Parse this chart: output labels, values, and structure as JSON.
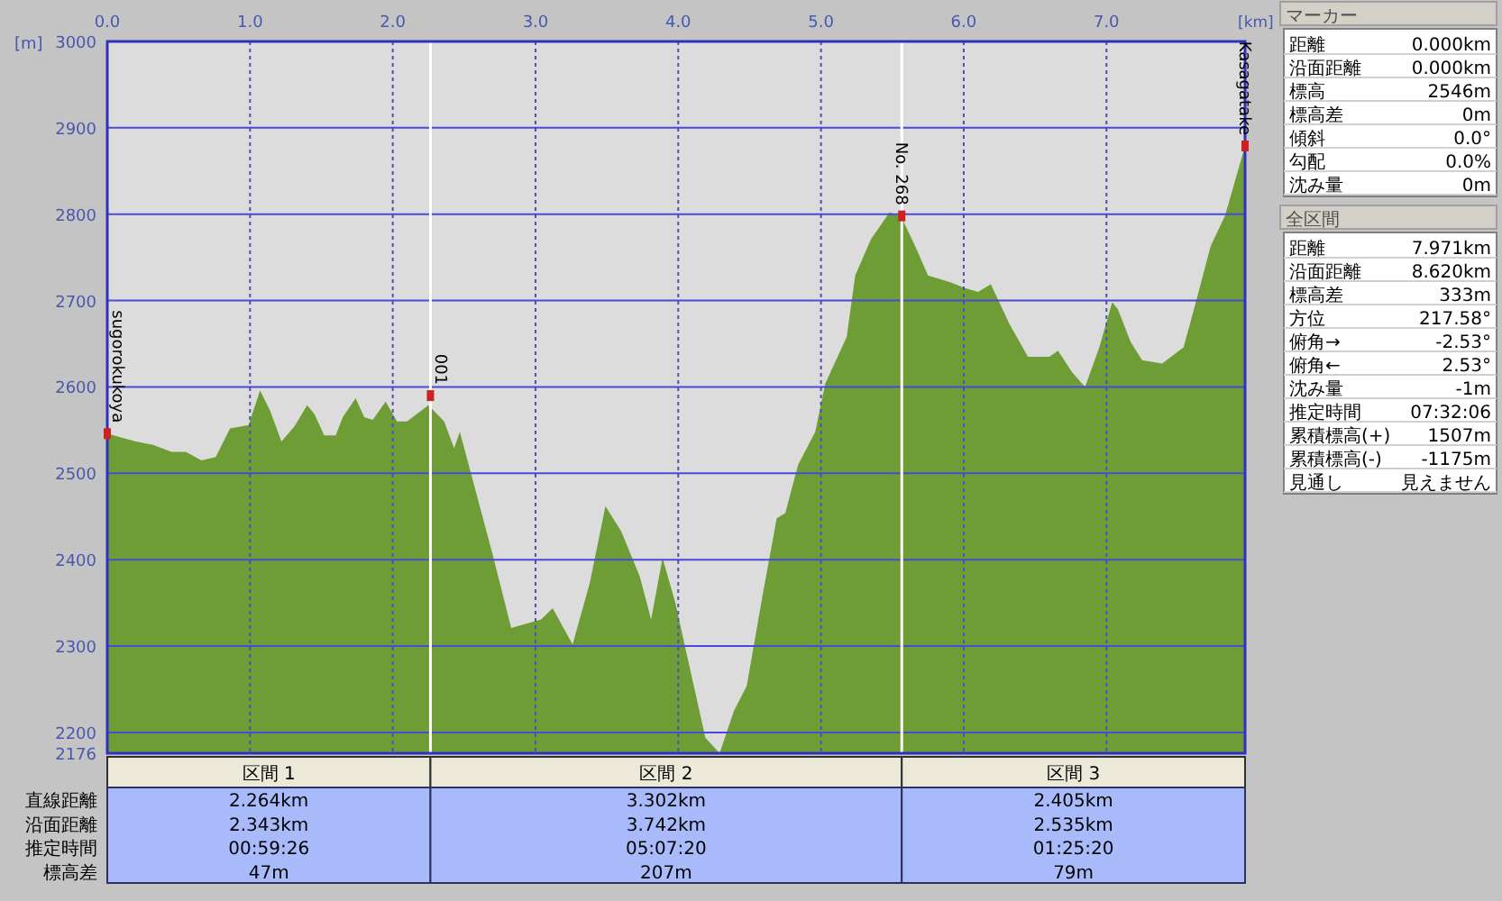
{
  "chart_data": {
    "type": "area",
    "xlabel": "[km]",
    "ylabel": "[m]",
    "x": [
      0,
      0.2,
      0.32,
      0.45,
      0.55,
      0.66,
      0.76,
      0.86,
      0.99,
      1.07,
      1.14,
      1.22,
      1.31,
      1.4,
      1.45,
      1.52,
      1.6,
      1.65,
      1.74,
      1.8,
      1.86,
      1.95,
      2.03,
      2.1,
      2.25,
      2.36,
      2.43,
      2.47,
      2.7,
      2.83,
      3.04,
      3.12,
      3.26,
      3.38,
      3.49,
      3.6,
      3.73,
      3.81,
      3.89,
      3.98,
      4.07,
      4.19,
      4.29,
      4.39,
      4.48,
      4.59,
      4.69,
      4.75,
      4.84,
      4.96,
      5.03,
      5.18,
      5.24,
      5.35,
      5.48,
      5.56,
      5.66,
      5.75,
      5.91,
      6.0,
      6.1,
      6.19,
      6.32,
      6.45,
      6.6,
      6.66,
      6.76,
      6.85,
      6.95,
      7.04,
      7.08,
      7.17,
      7.25,
      7.39,
      7.54,
      7.62,
      7.73,
      7.83,
      7.971
    ],
    "series": [
      {
        "color": "#6f9d35",
        "values": [
          2546,
          2537,
          2533,
          2525,
          2525,
          2515,
          2519,
          2552,
          2556,
          2596,
          2573,
          2537,
          2554,
          2579,
          2569,
          2544,
          2544,
          2565,
          2587,
          2565,
          2562,
          2583,
          2560,
          2560,
          2579,
          2560,
          2529,
          2548,
          2406,
          2321,
          2331,
          2344,
          2302,
          2373,
          2462,
          2433,
          2381,
          2331,
          2402,
          2350,
          2283,
          2194,
          2176,
          2225,
          2254,
          2358,
          2448,
          2454,
          2510,
          2548,
          2604,
          2658,
          2729,
          2771,
          2802,
          2798,
          2763,
          2729,
          2721,
          2715,
          2710,
          2719,
          2673,
          2635,
          2635,
          2642,
          2617,
          2600,
          2646,
          2698,
          2690,
          2652,
          2631,
          2627,
          2646,
          2694,
          2763,
          2798,
          2879
        ]
      }
    ],
    "xlim": [
      0,
      7.971
    ],
    "ylim": [
      2176,
      3000
    ],
    "xticks": [
      {
        "value": 0,
        "label": "0.0"
      },
      {
        "value": 1,
        "label": "1.0"
      },
      {
        "value": 2,
        "label": "2.0"
      },
      {
        "value": 3,
        "label": "3.0"
      },
      {
        "value": 4,
        "label": "4.0"
      },
      {
        "value": 5,
        "label": "5.0"
      },
      {
        "value": 6,
        "label": "6.0"
      },
      {
        "value": 7,
        "label": "7.0"
      }
    ],
    "yticks": [
      2176,
      2200,
      2300,
      2400,
      2500,
      2600,
      2700,
      2800,
      2900,
      3000
    ],
    "grid": true,
    "ref_lines": [
      {
        "axis": "x",
        "value": 2.264,
        "color": "#ffffff"
      },
      {
        "axis": "x",
        "value": 5.566,
        "color": "#ffffff"
      }
    ],
    "annotations": [
      "マーカー",
      "距離",
      "0.000km",
      "沿面距離",
      "0.000km",
      "標高",
      "2546m",
      "標高差",
      "0m",
      "傾斜",
      "0.0°",
      "勾配",
      "0.0%",
      "沈み量",
      "0m",
      "全区間",
      "距離",
      "7.971km",
      "沿面距離",
      "8.620km",
      "標高差",
      "333m",
      "方位",
      "217.58°",
      "俯角→",
      "-2.53°",
      "俯角←",
      "2.53°",
      "沈み量",
      "-1m",
      "推定時間",
      "07:32:06",
      "累積標高(+)",
      "1507m",
      "累積標高(-)",
      "-1175m",
      "見通し",
      "見えません",
      "直線距離",
      "沿面距離",
      "推定時間",
      "標高差",
      "区間 1",
      "区間 2",
      "区間 3",
      "2.264km",
      "2.343km",
      "00:59:26",
      "47m",
      "3.302km",
      "3.742km",
      "05:07:20",
      "207m",
      "2.405km",
      "2.535km",
      "01:25:20",
      "79m",
      {
        "text": "sugorokukoya",
        "x": 0,
        "y": 2546
      },
      {
        "text": "001",
        "x": 2.264,
        "y": 2590
      },
      {
        "text": "No. 268",
        "x": 5.566,
        "y": 2798
      },
      {
        "text": "Kasagatake",
        "x": 7.971,
        "y": 2879
      }
    ]
  }
}
